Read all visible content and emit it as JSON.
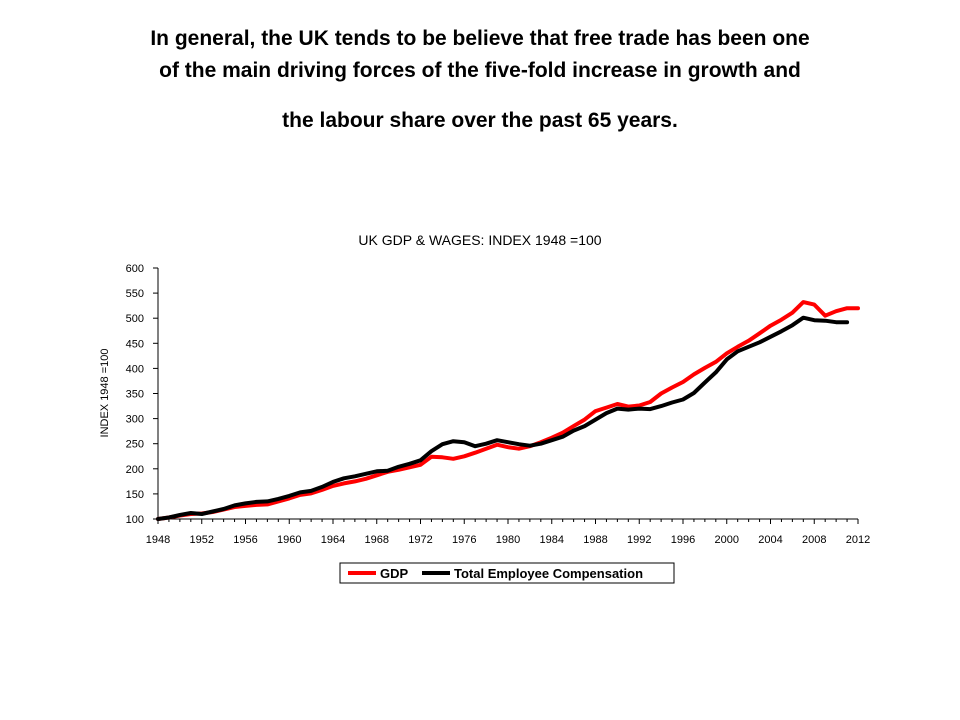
{
  "slide": {
    "title_lines": [
      "In general, the UK tends to be believe that free trade has been one",
      "of the main driving forces of the five-fold increase in growth and",
      "the labour share over the past 65 years."
    ]
  },
  "chart_data": {
    "type": "line",
    "title": "UK GDP & WAGES: INDEX 1948 =100",
    "xlabel": "",
    "ylabel": "INDEX 1948 =100",
    "ylim": [
      100,
      600
    ],
    "yticks": [
      100,
      150,
      200,
      250,
      300,
      350,
      400,
      450,
      500,
      550,
      600
    ],
    "xlim": [
      1948,
      2012
    ],
    "xticks": [
      1948,
      1952,
      1956,
      1960,
      1964,
      1968,
      1972,
      1976,
      1980,
      1984,
      1988,
      1992,
      1996,
      2000,
      2004,
      2008,
      2012
    ],
    "grid": false,
    "legend_position": "bottom",
    "colors": {
      "GDP": "#ff0000",
      "Total Employee Compensation": "#000000"
    },
    "series": [
      {
        "name": "GDP",
        "x": [
          1948,
          1949,
          1950,
          1951,
          1952,
          1953,
          1954,
          1955,
          1956,
          1957,
          1958,
          1959,
          1960,
          1961,
          1962,
          1963,
          1964,
          1965,
          1966,
          1967,
          1968,
          1969,
          1970,
          1971,
          1972,
          1973,
          1974,
          1975,
          1976,
          1977,
          1978,
          1979,
          1980,
          1981,
          1982,
          1983,
          1984,
          1985,
          1986,
          1987,
          1988,
          1989,
          1990,
          1991,
          1992,
          1993,
          1994,
          1995,
          1996,
          1997,
          1998,
          1999,
          2000,
          2001,
          2002,
          2003,
          2004,
          2005,
          2006,
          2007,
          2008,
          2009,
          2010,
          2011,
          2012
        ],
        "values": [
          100,
          103,
          107,
          110,
          111,
          114,
          119,
          124,
          126,
          128,
          129,
          135,
          141,
          148,
          151,
          158,
          166,
          171,
          175,
          180,
          187,
          194,
          198,
          203,
          208,
          224,
          223,
          220,
          225,
          232,
          240,
          248,
          243,
          240,
          245,
          253,
          262,
          272,
          285,
          298,
          315,
          322,
          329,
          324,
          326,
          333,
          350,
          362,
          373,
          388,
          401,
          413,
          430,
          443,
          455,
          470,
          485,
          497,
          511,
          532,
          527,
          505,
          514,
          520,
          520
        ]
      },
      {
        "name": "Total Employee Compensation",
        "x": [
          1948,
          1949,
          1950,
          1951,
          1952,
          1953,
          1954,
          1955,
          1956,
          1957,
          1958,
          1959,
          1960,
          1961,
          1962,
          1963,
          1964,
          1965,
          1966,
          1967,
          1968,
          1969,
          1970,
          1971,
          1972,
          1973,
          1974,
          1975,
          1976,
          1977,
          1978,
          1979,
          1980,
          1981,
          1982,
          1983,
          1984,
          1985,
          1986,
          1987,
          1988,
          1989,
          1990,
          1991,
          1992,
          1993,
          1994,
          1995,
          1996,
          1997,
          1998,
          1999,
          2000,
          2001,
          2002,
          2003,
          2004,
          2005,
          2006,
          2007,
          2008,
          2009,
          2010,
          2011
        ],
        "values": [
          100,
          103,
          108,
          112,
          110,
          115,
          120,
          127,
          131,
          134,
          135,
          140,
          146,
          153,
          156,
          164,
          174,
          181,
          185,
          190,
          195,
          196,
          204,
          210,
          217,
          235,
          249,
          255,
          253,
          245,
          250,
          257,
          253,
          249,
          246,
          250,
          257,
          264,
          276,
          285,
          298,
          311,
          320,
          318,
          320,
          319,
          325,
          332,
          338,
          351,
          372,
          392,
          418,
          434,
          443,
          452,
          463,
          474,
          486,
          501,
          496,
          495,
          492,
          492
        ]
      }
    ]
  }
}
